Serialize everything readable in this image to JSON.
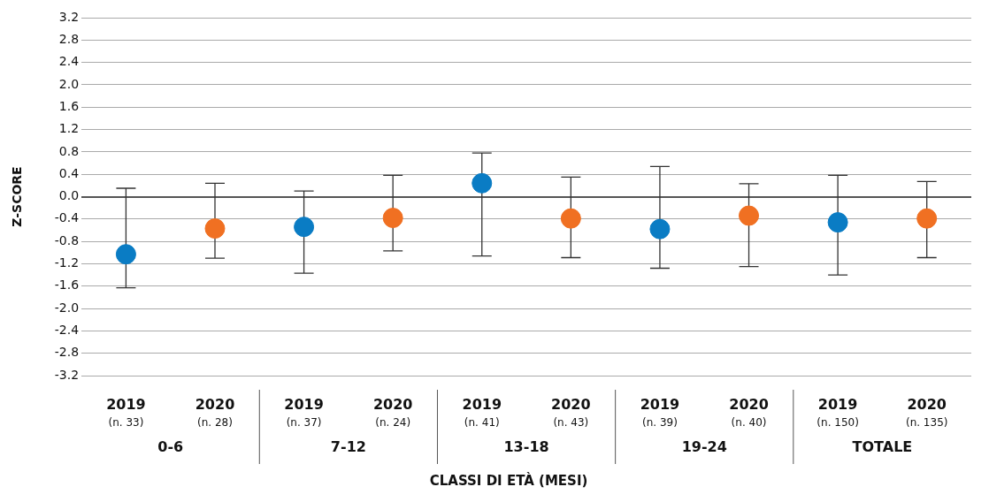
{
  "chart_data": {
    "type": "scatter",
    "xlabel": "CLASSI DI ETÀ (MESI)",
    "ylabel": "Z-SCORE",
    "categories": [
      "2019 (n. 33)",
      "2020 (n. 28)",
      "2019 (n. 37)",
      "2020 (n. 24)",
      "2019 (n. 41)",
      "2020 (n. 43)",
      "2019 (n. 39)",
      "2020 (n. 40)",
      "2019 (n. 150)",
      "2020 (n. 135)"
    ],
    "annotations": [
      "0-6",
      "7-12",
      "13-18",
      "19-24",
      "TOTALE"
    ],
    "series": [
      {
        "color": "#0a7cc4",
        "values": [
          -1.03,
          null,
          -0.54,
          null,
          0.24,
          null,
          -0.58,
          null,
          -0.46,
          null
        ],
        "errors": [
          [
            -1.63,
            0.15
          ],
          null,
          [
            -1.37,
            0.1
          ],
          null,
          [
            -1.06,
            0.78
          ],
          null,
          [
            -1.28,
            0.54
          ],
          null,
          [
            -1.4,
            0.38
          ],
          null
        ]
      },
      {
        "color": "#f07022",
        "values": [
          null,
          -0.57,
          null,
          -0.38,
          null,
          -0.39,
          null,
          -0.34,
          null,
          -0.39
        ],
        "errors": [
          null,
          [
            -1.1,
            0.24
          ],
          null,
          [
            -0.97,
            0.38
          ],
          null,
          [
            -1.09,
            0.35
          ],
          null,
          [
            -1.25,
            0.23
          ],
          null,
          [
            -1.09,
            0.27
          ]
        ]
      }
    ],
    "ylim": [
      -3.2,
      3.2
    ],
    "yticks": [
      -3.2,
      -2.8,
      -2.4,
      {
        "value": -2,
        "label": "-2.0"
      },
      -1.6,
      -1.2,
      -0.8,
      -0.4,
      {
        "value": 0,
        "label": "0.0"
      },
      0.4,
      0.8,
      1.2,
      1.6,
      {
        "value": 2,
        "label": "2.0"
      },
      2.4,
      2.8,
      3.2
    ],
    "grid": "y",
    "legend": false,
    "marker": "circle"
  }
}
